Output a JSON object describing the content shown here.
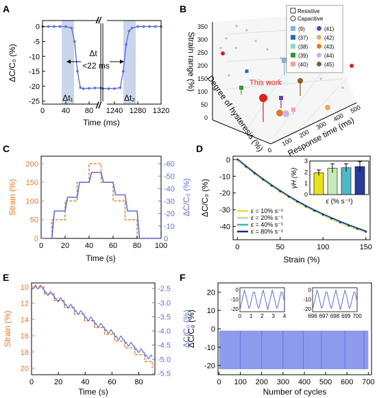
{
  "colors": {
    "orange": "#E87722",
    "blue": "#5B6CE0",
    "band": "#C9D6EA",
    "black": "#000000"
  },
  "chart_data": [
    {
      "panel": "A",
      "type": "line",
      "xlabel": "Time (ms)",
      "ylabel": "ΔC/C₀ (%)",
      "xticks": [
        "0",
        "40",
        "80",
        "1240",
        "1280",
        "1320"
      ],
      "yticks": [
        "0",
        "-5",
        "-10",
        "-15",
        "-20",
        "-25"
      ],
      "annotations": [
        "Δt",
        "<22 ms",
        "Δt₁",
        "Δt₂",
        "//"
      ],
      "series": [
        {
          "x": [
            0,
            10,
            20,
            30,
            40,
            50,
            55,
            60,
            65,
            70,
            80,
            90,
            100
          ],
          "y": [
            0,
            0,
            0,
            0,
            0,
            -0.5,
            -5,
            -15,
            -20.5,
            -20.8,
            -20.7,
            -20.6,
            -20.6
          ]
        },
        {
          "x": [
            1220,
            1230,
            1240,
            1250,
            1255,
            1260,
            1265,
            1270,
            1280,
            1290,
            1300,
            1310,
            1320
          ],
          "y": [
            -20.8,
            -20.8,
            -20.8,
            -20.5,
            -15,
            -6,
            -1.5,
            -0.5,
            0,
            0,
            0,
            0,
            0
          ]
        }
      ]
    },
    {
      "panel": "B",
      "type": "scatter",
      "xlabel": "Response time (ms)",
      "ylabel": "Strain range (%)",
      "zlabel": "Degree of hysteresis (%)",
      "yticks": [
        "0",
        "50",
        "100",
        "150",
        "200",
        "250",
        "300",
        "350"
      ],
      "xticks": [
        "0",
        "100",
        "200",
        "300",
        "400",
        "500"
      ],
      "legend_title": [
        "Resistive",
        "Capacitive"
      ],
      "legend": [
        {
          "ref": "(9)",
          "color": "#7FB3E0"
        },
        {
          "ref": "(41)",
          "color": "#6B3FA0"
        },
        {
          "ref": "(37)",
          "color": "#2B6CB0"
        },
        {
          "ref": "(42)",
          "color": "#F2A65A"
        },
        {
          "ref": "(38)",
          "color": "#8FD8C8"
        },
        {
          "ref": "(43)",
          "color": "#E8761F"
        },
        {
          "ref": "(39)",
          "color": "#2CA02C"
        },
        {
          "ref": "(44)",
          "color": "#C8B4E8"
        },
        {
          "ref": "(40)",
          "color": "#F4A0A8"
        },
        {
          "ref": "(45)",
          "color": "#8B5A2B"
        }
      ],
      "annotations": [
        "This work"
      ]
    },
    {
      "panel": "C",
      "type": "line",
      "xlabel": "Time (s)",
      "ylabel": "Strain (%)",
      "y2label": "ΔC/C₀ (%)",
      "xlim": [
        0,
        100
      ],
      "ylim": [
        0,
        220
      ],
      "y2lim": [
        0,
        -66
      ],
      "xticks": [
        "0",
        "20",
        "40",
        "60",
        "80",
        "100"
      ],
      "yticks": [
        "0",
        "50",
        "100",
        "150",
        "200"
      ],
      "y2ticks": [
        "0",
        "-10",
        "-20",
        "-30",
        "-40",
        "-50",
        "-60"
      ],
      "series": [
        {
          "name": "Strain",
          "color": "#E87722",
          "dashed": true,
          "x": [
            0,
            9,
            9,
            20,
            20,
            30,
            30,
            40,
            40,
            50,
            50,
            60,
            60,
            70,
            70,
            80,
            80,
            90,
            90,
            100
          ],
          "y": [
            0,
            0,
            50,
            50,
            100,
            100,
            150,
            150,
            200,
            200,
            150,
            150,
            100,
            100,
            50,
            50,
            0,
            0,
            0,
            0
          ]
        },
        {
          "name": "ΔC/C₀",
          "color": "#5B6CE0",
          "x": [
            0,
            9,
            11,
            20,
            22,
            30,
            32,
            40,
            42,
            50,
            52,
            60,
            62,
            70,
            72,
            80,
            82,
            90,
            92,
            100
          ],
          "y": [
            0,
            0,
            -22,
            -22,
            -33,
            -33,
            -45,
            -45,
            -53,
            -53,
            -45,
            -45,
            -35,
            -35,
            -22,
            -22,
            0,
            0,
            0,
            0
          ]
        }
      ]
    },
    {
      "panel": "D",
      "type": "line",
      "xlabel": "Strain (%)",
      "ylabel": "ΔC/C₀ (%)",
      "xlim": [
        -5,
        155
      ],
      "ylim": [
        -48,
        2
      ],
      "xticks": [
        "0",
        "50",
        "100",
        "150"
      ],
      "yticks": [
        "0",
        "-10",
        "-20",
        "-30",
        "-40"
      ],
      "legend": [
        {
          "label": "ε̇ = 10% s⁻¹",
          "color": "#E8E020"
        },
        {
          "label": "ε̇ = 20% s⁻¹",
          "color": "#A8E0A0"
        },
        {
          "label": "ε̇ = 40% s⁻¹",
          "color": "#40B0C0"
        },
        {
          "label": "ε̇ = 80% s⁻¹",
          "color": "#1A2A8A"
        }
      ],
      "x": [
        0,
        10,
        20,
        30,
        40,
        50,
        60,
        70,
        80,
        90,
        100,
        110,
        120,
        130,
        140,
        150
      ],
      "y": [
        0,
        -4.2,
        -8.2,
        -12,
        -15.6,
        -19,
        -22.2,
        -25.2,
        -28,
        -30.6,
        -33,
        -35.3,
        -37.5,
        -39.5,
        -41.4,
        -43.2
      ],
      "inset": {
        "type": "bar",
        "ylabel": "γH (%)",
        "xlabel": "ε̇ (% s⁻¹)",
        "ylim": [
          0,
          3
        ],
        "yticks": [
          "0",
          "1",
          "2",
          "3"
        ],
        "values": [
          1.95,
          2.35,
          2.4,
          2.5
        ],
        "errors": [
          0.25,
          0.4,
          0.35,
          0.45
        ],
        "colors": [
          "#E8E020",
          "#C8EAB8",
          "#4FB8C8",
          "#2A3A9A"
        ]
      }
    },
    {
      "panel": "E",
      "type": "line",
      "xlabel": "Time (s)",
      "ylabel": "Strain (%)",
      "y2label": "ΔC/C₀ (%)",
      "xlim": [
        0,
        92
      ],
      "ylim": [
        9.5,
        20.8
      ],
      "y2lim": [
        -2.3,
        -5.55
      ],
      "xticks": [
        "0",
        "20",
        "40",
        "60",
        "80"
      ],
      "yticks": [
        "10",
        "12",
        "14",
        "16",
        "18",
        "20"
      ],
      "y2ticks": [
        "-2.5",
        "-3.0",
        "-3.5",
        "-4.0",
        "-4.5",
        "-5.0",
        "-5.5"
      ],
      "series": [
        {
          "name": "Strain",
          "color": "#E87722",
          "dashed": true
        },
        {
          "name": "ΔC/C₀",
          "color": "#5B6CE0"
        }
      ]
    },
    {
      "panel": "F",
      "type": "area",
      "xlabel": "Number of cycles",
      "ylabel": "ΔC/C₀ (%)",
      "xlim": [
        -5,
        715
      ],
      "ylim": [
        -25,
        25
      ],
      "xticks": [
        "0",
        "100",
        "200",
        "300",
        "400",
        "500",
        "600",
        "700"
      ],
      "yticks": [
        "20",
        "10",
        "0",
        "-10",
        "-20"
      ],
      "band": [
        -22,
        -1
      ],
      "insets": [
        {
          "xticks": [
            "0",
            "1",
            "2",
            "3",
            "4"
          ],
          "yticks": [
            "0",
            "-10",
            "-20"
          ],
          "xlim": [
            0,
            4
          ],
          "ylim": [
            -23,
            2
          ]
        },
        {
          "xticks": [
            "696",
            "697",
            "698",
            "699",
            "700"
          ],
          "yticks": [
            "0",
            "-10",
            "-20"
          ],
          "xlim": [
            696,
            700
          ],
          "ylim": [
            -23,
            2
          ]
        }
      ]
    }
  ],
  "panel_labels": [
    "A",
    "B",
    "C",
    "D",
    "E",
    "F"
  ]
}
